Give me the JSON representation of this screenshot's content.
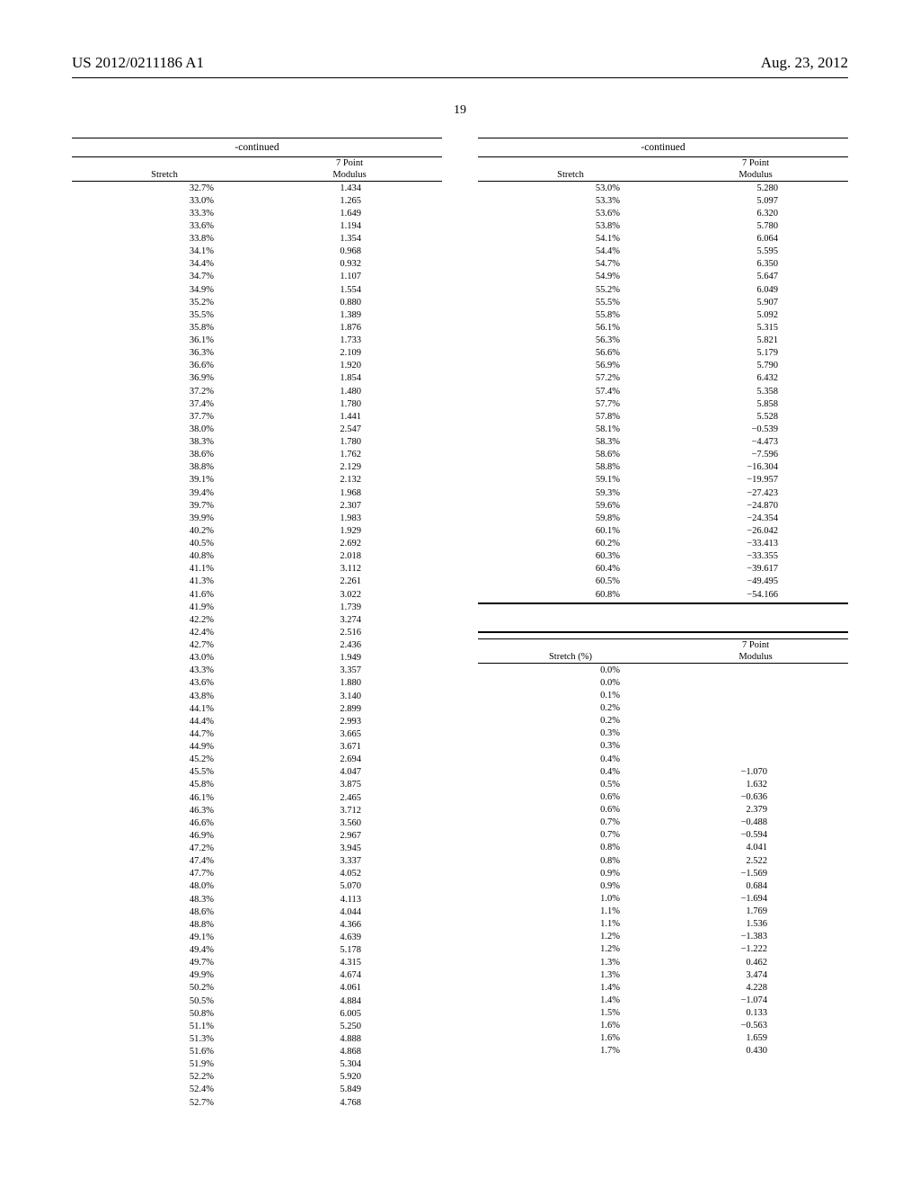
{
  "header": {
    "left": "US 2012/0211186 A1",
    "right": "Aug. 23, 2012"
  },
  "page_number": "19",
  "table_caption": "-continued",
  "col_hdr_stretch": "Stretch",
  "col_hdr_stretch_pct": "Stretch (%)",
  "col_hdr_modulus_l1": "7 Point",
  "col_hdr_modulus_l2": "Modulus",
  "tableA": [
    [
      "32.7%",
      "1.434"
    ],
    [
      "33.0%",
      "1.265"
    ],
    [
      "33.3%",
      "1.649"
    ],
    [
      "33.6%",
      "1.194"
    ],
    [
      "33.8%",
      "1.354"
    ],
    [
      "34.1%",
      "0.968"
    ],
    [
      "34.4%",
      "0.932"
    ],
    [
      "34.7%",
      "1.107"
    ],
    [
      "34.9%",
      "1.554"
    ],
    [
      "35.2%",
      "0.880"
    ],
    [
      "35.5%",
      "1.389"
    ],
    [
      "35.8%",
      "1.876"
    ],
    [
      "36.1%",
      "1.733"
    ],
    [
      "36.3%",
      "2.109"
    ],
    [
      "36.6%",
      "1.920"
    ],
    [
      "36.9%",
      "1.854"
    ],
    [
      "37.2%",
      "1.480"
    ],
    [
      "37.4%",
      "1.780"
    ],
    [
      "37.7%",
      "1.441"
    ],
    [
      "38.0%",
      "2.547"
    ],
    [
      "38.3%",
      "1.780"
    ],
    [
      "38.6%",
      "1.762"
    ],
    [
      "38.8%",
      "2.129"
    ],
    [
      "39.1%",
      "2.132"
    ],
    [
      "39.4%",
      "1.968"
    ],
    [
      "39.7%",
      "2.307"
    ],
    [
      "39.9%",
      "1.983"
    ],
    [
      "40.2%",
      "1.929"
    ],
    [
      "40.5%",
      "2.692"
    ],
    [
      "40.8%",
      "2.018"
    ],
    [
      "41.1%",
      "3.112"
    ],
    [
      "41.3%",
      "2.261"
    ],
    [
      "41.6%",
      "3.022"
    ],
    [
      "41.9%",
      "1.739"
    ],
    [
      "42.2%",
      "3.274"
    ],
    [
      "42.4%",
      "2.516"
    ],
    [
      "42.7%",
      "2.436"
    ],
    [
      "43.0%",
      "1.949"
    ],
    [
      "43.3%",
      "3.357"
    ],
    [
      "43.6%",
      "1.880"
    ],
    [
      "43.8%",
      "3.140"
    ],
    [
      "44.1%",
      "2.899"
    ],
    [
      "44.4%",
      "2.993"
    ],
    [
      "44.7%",
      "3.665"
    ],
    [
      "44.9%",
      "3.671"
    ],
    [
      "45.2%",
      "2.694"
    ],
    [
      "45.5%",
      "4.047"
    ],
    [
      "45.8%",
      "3.875"
    ],
    [
      "46.1%",
      "2.465"
    ],
    [
      "46.3%",
      "3.712"
    ],
    [
      "46.6%",
      "3.560"
    ],
    [
      "46.9%",
      "2.967"
    ],
    [
      "47.2%",
      "3.945"
    ],
    [
      "47.4%",
      "3.337"
    ],
    [
      "47.7%",
      "4.052"
    ],
    [
      "48.0%",
      "5.070"
    ],
    [
      "48.3%",
      "4.113"
    ],
    [
      "48.6%",
      "4.044"
    ],
    [
      "48.8%",
      "4.366"
    ],
    [
      "49.1%",
      "4.639"
    ],
    [
      "49.4%",
      "5.178"
    ],
    [
      "49.7%",
      "4.315"
    ],
    [
      "49.9%",
      "4.674"
    ],
    [
      "50.2%",
      "4.061"
    ],
    [
      "50.5%",
      "4.884"
    ],
    [
      "50.8%",
      "6.005"
    ],
    [
      "51.1%",
      "5.250"
    ],
    [
      "51.3%",
      "4.888"
    ],
    [
      "51.6%",
      "4.868"
    ],
    [
      "51.9%",
      "5.304"
    ],
    [
      "52.2%",
      "5.920"
    ],
    [
      "52.4%",
      "5.849"
    ],
    [
      "52.7%",
      "4.768"
    ]
  ],
  "tableB": [
    [
      "53.0%",
      "5.280"
    ],
    [
      "53.3%",
      "5.097"
    ],
    [
      "53.6%",
      "6.320"
    ],
    [
      "53.8%",
      "5.780"
    ],
    [
      "54.1%",
      "6.064"
    ],
    [
      "54.4%",
      "5.595"
    ],
    [
      "54.7%",
      "6.350"
    ],
    [
      "54.9%",
      "5.647"
    ],
    [
      "55.2%",
      "6.049"
    ],
    [
      "55.5%",
      "5.907"
    ],
    [
      "55.8%",
      "5.092"
    ],
    [
      "56.1%",
      "5.315"
    ],
    [
      "56.3%",
      "5.821"
    ],
    [
      "56.6%",
      "5.179"
    ],
    [
      "56.9%",
      "5.790"
    ],
    [
      "57.2%",
      "6.432"
    ],
    [
      "57.4%",
      "5.358"
    ],
    [
      "57.7%",
      "5.858"
    ],
    [
      "57.8%",
      "5.528"
    ],
    [
      "58.1%",
      "−0.539"
    ],
    [
      "58.3%",
      "−4.473"
    ],
    [
      "58.6%",
      "−7.596"
    ],
    [
      "58.8%",
      "−16.304"
    ],
    [
      "59.1%",
      "−19.957"
    ],
    [
      "59.3%",
      "−27.423"
    ],
    [
      "59.6%",
      "−24.870"
    ],
    [
      "59.8%",
      "−24.354"
    ],
    [
      "60.1%",
      "−26.042"
    ],
    [
      "60.2%",
      "−33.413"
    ],
    [
      "60.3%",
      "−33.355"
    ],
    [
      "60.4%",
      "−39.617"
    ],
    [
      "60.5%",
      "−49.495"
    ],
    [
      "60.8%",
      "−54.166"
    ]
  ],
  "tableC": [
    [
      "0.0%",
      ""
    ],
    [
      "0.0%",
      ""
    ],
    [
      "0.1%",
      ""
    ],
    [
      "0.2%",
      ""
    ],
    [
      "0.2%",
      ""
    ],
    [
      "0.3%",
      ""
    ],
    [
      "0.3%",
      ""
    ],
    [
      "0.4%",
      ""
    ],
    [
      "0.4%",
      "−1.070"
    ],
    [
      "0.5%",
      "1.632"
    ],
    [
      "0.6%",
      "−0.636"
    ],
    [
      "0.6%",
      "2.379"
    ],
    [
      "0.7%",
      "−0.488"
    ],
    [
      "0.7%",
      "−0.594"
    ],
    [
      "0.8%",
      "4.041"
    ],
    [
      "0.8%",
      "2.522"
    ],
    [
      "0.9%",
      "−1.569"
    ],
    [
      "0.9%",
      "0.684"
    ],
    [
      "1.0%",
      "−1.694"
    ],
    [
      "1.1%",
      "1.769"
    ],
    [
      "1.1%",
      "1.536"
    ],
    [
      "1.2%",
      "−1.383"
    ],
    [
      "1.2%",
      "−1.222"
    ],
    [
      "1.3%",
      "0.462"
    ],
    [
      "1.3%",
      "3.474"
    ],
    [
      "1.4%",
      "4.228"
    ],
    [
      "1.4%",
      "−1.074"
    ],
    [
      "1.5%",
      "0.133"
    ],
    [
      "1.6%",
      "−0.563"
    ],
    [
      "1.6%",
      "1.659"
    ],
    [
      "1.7%",
      "0.430"
    ]
  ]
}
